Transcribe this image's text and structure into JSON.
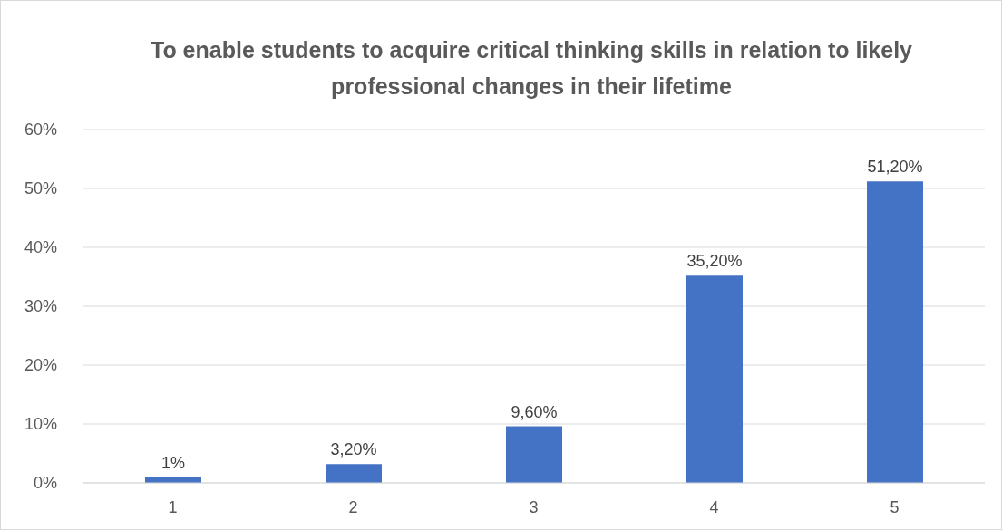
{
  "chart_data": {
    "type": "bar",
    "title": "To enable students to acquire critical thinking skills in relation to likely professional changes in their lifetime",
    "categories": [
      "1",
      "2",
      "3",
      "4",
      "5"
    ],
    "values": [
      1,
      3.2,
      9.6,
      35.2,
      51.2
    ],
    "value_labels": [
      "1%",
      "3,20%",
      "9,60%",
      "35,20%",
      "51,20%"
    ],
    "color": "#4472c4",
    "ylim": [
      0,
      60
    ],
    "yticks": [
      {
        "value": 0,
        "label": "0%"
      },
      {
        "value": 10,
        "label": "10%"
      },
      {
        "value": 20,
        "label": "20%"
      },
      {
        "value": 30,
        "label": "30%"
      },
      {
        "value": 40,
        "label": "40%"
      },
      {
        "value": 50,
        "label": "50%"
      },
      {
        "value": 60,
        "label": "60%"
      }
    ],
    "grid": "y"
  }
}
